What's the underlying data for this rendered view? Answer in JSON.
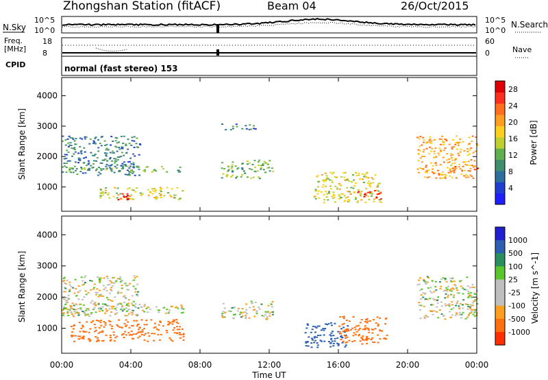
{
  "header": {
    "title": "Zhongshan Station (fitACF)",
    "beam": "Beam 04",
    "date": "26/Oct/2015"
  },
  "top_panels": {
    "nsky_label": "N.Sky",
    "nsearch_label": "N.Search",
    "nsky_ticks": [
      "10^5",
      "10^0"
    ],
    "nsearch_ticks": [
      "10^5",
      "10^0"
    ],
    "freq_label": [
      "Freq.",
      "[MHz]"
    ],
    "freq_ticks": [
      "18",
      "8"
    ],
    "nave_label": "Nave",
    "nave_ticks": [
      "60",
      "0"
    ],
    "cpid_label": "CPID",
    "cpid_text": "normal (fast stereo) 153"
  },
  "time_axis": {
    "label": "Time UT",
    "ticks": [
      "00:00",
      "04:00",
      "08:00",
      "12:00",
      "16:00",
      "20:00",
      "00:00"
    ]
  },
  "colors": {
    "power_scale": [
      "#1e1eff",
      "#1e3fd2",
      "#2f6f9f",
      "#3f8f6f",
      "#5faf4f",
      "#bfcf2f",
      "#ffcf1f",
      "#ff9f1f",
      "#ff6f1f",
      "#ff2f1f",
      "#e00000"
    ],
    "velocity_scale": [
      "#2020d0",
      "#2c5fb0",
      "#2a8f5f",
      "#59c62c",
      "#bfbfbf",
      "#bfbfbf",
      "#ff9f1f",
      "#ff6f0f",
      "#ff2f00"
    ]
  },
  "chart_data": [
    {
      "type": "heatmap",
      "name_axis": "time",
      "ylabel": "Slant Range [km]",
      "yticks": [
        1000,
        2000,
        3000,
        4000
      ],
      "ylim": [
        200,
        4600
      ],
      "xlim": [
        0,
        24
      ],
      "colorbar": {
        "label": "Power [dB]",
        "ticks": [
          4,
          8,
          12,
          16,
          20,
          24,
          28
        ],
        "range": [
          0,
          30
        ]
      },
      "echo_regions": [
        {
          "t_start": 0.0,
          "t_end": 4.5,
          "r_min": 1400,
          "r_max": 2700,
          "value": 8
        },
        {
          "t_start": 0.0,
          "t_end": 7.0,
          "r_min": 1500,
          "r_max": 1700,
          "value": 12
        },
        {
          "t_start": 2.0,
          "t_end": 7.0,
          "r_min": 600,
          "r_max": 1000,
          "value": 16
        },
        {
          "t_start": 3.0,
          "t_end": 4.5,
          "r_min": 600,
          "r_max": 800,
          "value": 26
        },
        {
          "t_start": 9.2,
          "t_end": 12.2,
          "r_min": 1300,
          "r_max": 1900,
          "value": 12
        },
        {
          "t_start": 9.2,
          "t_end": 11.2,
          "r_min": 2900,
          "r_max": 3100,
          "value": 8
        },
        {
          "t_start": 14.5,
          "t_end": 18.5,
          "r_min": 500,
          "r_max": 1500,
          "value": 16
        },
        {
          "t_start": 17.0,
          "t_end": 18.5,
          "r_min": 600,
          "r_max": 900,
          "value": 26
        },
        {
          "t_start": 20.5,
          "t_end": 24.0,
          "r_min": 1300,
          "r_max": 2700,
          "value": 20
        },
        {
          "t_start": 22.5,
          "t_end": 24.0,
          "r_min": 1500,
          "r_max": 1700,
          "value": 24
        }
      ]
    },
    {
      "type": "heatmap",
      "name_axis": "time",
      "ylabel": "Slant Range [km]",
      "yticks": [
        1000,
        2000,
        3000,
        4000
      ],
      "ylim": [
        200,
        4600
      ],
      "xlim": [
        0,
        24
      ],
      "colorbar": {
        "label": "Velocity [m s^-1]",
        "ticks": [
          1000,
          500,
          100,
          25,
          -25,
          -100,
          -500,
          -1000
        ]
      },
      "echo_regions": [
        {
          "t_start": 0.0,
          "t_end": 4.5,
          "r_min": 1400,
          "r_max": 2700,
          "value": 0
        },
        {
          "t_start": 0.0,
          "t_end": 7.0,
          "r_min": 1500,
          "r_max": 1800,
          "value": 0
        },
        {
          "t_start": 0.5,
          "t_end": 7.0,
          "r_min": 600,
          "r_max": 1300,
          "value": -200
        },
        {
          "t_start": 9.2,
          "t_end": 12.2,
          "r_min": 1300,
          "r_max": 1900,
          "value": 0
        },
        {
          "t_start": 14.0,
          "t_end": 16.5,
          "r_min": 400,
          "r_max": 1200,
          "value": 300
        },
        {
          "t_start": 16.0,
          "t_end": 18.8,
          "r_min": 500,
          "r_max": 1400,
          "value": -200
        },
        {
          "t_start": 20.5,
          "t_end": 24.0,
          "r_min": 1300,
          "r_max": 2700,
          "value": 0
        }
      ]
    }
  ]
}
